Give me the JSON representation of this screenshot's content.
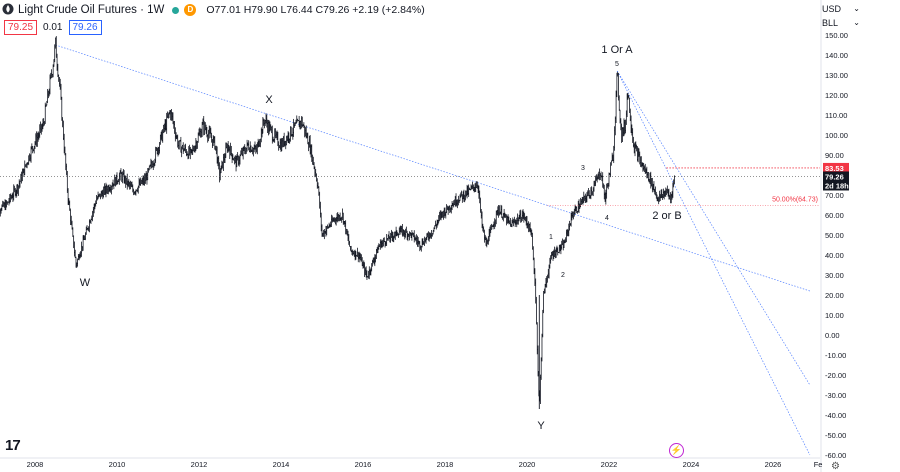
{
  "header": {
    "title": "Light Crude Oil Futures · 1W",
    "ohlc": "O77.01 H79.90 L76.44 C79.26 +2.19 (+2.84%)",
    "bid": "79.25",
    "spread": "0.01",
    "ask": "79.26"
  },
  "controls": {
    "currency": "USD",
    "unit": "BLL"
  },
  "price_labels": {
    "target": "83.53",
    "current": "79.26",
    "countdown": "2d 18h"
  },
  "chart_data": {
    "type": "line",
    "title": "Light Crude Oil Futures",
    "interval": "1W",
    "ylim": [
      -60,
      150
    ],
    "ylabel": "",
    "y_ticks": [
      "150.00",
      "140.00",
      "130.00",
      "120.00",
      "110.00",
      "100.00",
      "90.00",
      "80.00",
      "70.00",
      "60.00",
      "50.00",
      "40.00",
      "30.00",
      "20.00",
      "10.00",
      "0.00",
      "-10.00",
      "-20.00",
      "-30.00",
      "-40.00",
      "-50.00",
      "-60.00"
    ],
    "x_ticks": [
      "2008",
      "2010",
      "2012",
      "2014",
      "2016",
      "2018",
      "2020",
      "2022",
      "2024",
      "2026",
      "Fe"
    ],
    "series": [
      {
        "values": [
          [
            2007.0,
            62
          ],
          [
            2007.3,
            65
          ],
          [
            2007.6,
            75
          ],
          [
            2007.9,
            92
          ],
          [
            2008.2,
            105
          ],
          [
            2008.4,
            130
          ],
          [
            2008.5,
            145
          ],
          [
            2008.6,
            125
          ],
          [
            2008.8,
            70
          ],
          [
            2009.0,
            35
          ],
          [
            2009.2,
            48
          ],
          [
            2009.5,
            68
          ],
          [
            2009.8,
            74
          ],
          [
            2010.1,
            80
          ],
          [
            2010.4,
            72
          ],
          [
            2010.7,
            78
          ],
          [
            2010.9,
            88
          ],
          [
            2011.1,
            100
          ],
          [
            2011.3,
            112
          ],
          [
            2011.5,
            95
          ],
          [
            2011.8,
            90
          ],
          [
            2012.1,
            105
          ],
          [
            2012.4,
            95
          ],
          [
            2012.5,
            80
          ],
          [
            2012.7,
            95
          ],
          [
            2012.9,
            86
          ],
          [
            2013.2,
            95
          ],
          [
            2013.4,
            92
          ],
          [
            2013.6,
            108
          ],
          [
            2013.8,
            100
          ],
          [
            2014.0,
            95
          ],
          [
            2014.3,
            103
          ],
          [
            2014.5,
            107
          ],
          [
            2014.7,
            95
          ],
          [
            2014.9,
            75
          ],
          [
            2015.0,
            50
          ],
          [
            2015.3,
            58
          ],
          [
            2015.5,
            60
          ],
          [
            2015.7,
            42
          ],
          [
            2015.9,
            40
          ],
          [
            2016.1,
            29
          ],
          [
            2016.4,
            45
          ],
          [
            2016.6,
            48
          ],
          [
            2016.9,
            52
          ],
          [
            2017.2,
            50
          ],
          [
            2017.4,
            45
          ],
          [
            2017.7,
            52
          ],
          [
            2017.9,
            60
          ],
          [
            2018.3,
            68
          ],
          [
            2018.6,
            72
          ],
          [
            2018.8,
            76
          ],
          [
            2018.9,
            55
          ],
          [
            2019.0,
            45
          ],
          [
            2019.3,
            63
          ],
          [
            2019.6,
            55
          ],
          [
            2019.9,
            60
          ],
          [
            2020.1,
            52
          ],
          [
            2020.2,
            25
          ],
          [
            2020.3,
            -37
          ],
          [
            2020.4,
            20
          ],
          [
            2020.6,
            40
          ],
          [
            2020.9,
            45
          ],
          [
            2021.1,
            60
          ],
          [
            2021.4,
            68
          ],
          [
            2021.6,
            73
          ],
          [
            2021.8,
            82
          ],
          [
            2021.9,
            68
          ],
          [
            2022.1,
            90
          ],
          [
            2022.2,
            130
          ],
          [
            2022.3,
            100
          ],
          [
            2022.4,
            105
          ],
          [
            2022.45,
            123
          ],
          [
            2022.6,
            95
          ],
          [
            2022.8,
            85
          ],
          [
            2023.0,
            78
          ],
          [
            2023.2,
            68
          ],
          [
            2023.4,
            72
          ],
          [
            2023.5,
            68
          ],
          [
            2023.6,
            79.26
          ]
        ]
      }
    ],
    "wave_labels": [
      "W",
      "X",
      "Y",
      "1 Or A",
      "2 or B",
      "1",
      "2",
      "3",
      "4",
      "5"
    ],
    "fib_label": "50.00%(64.73)",
    "levels": {
      "fib_50": 64.73,
      "target": 83.53,
      "current": 79.26
    },
    "trendlines": [
      {
        "from": [
          2008.5,
          145
        ],
        "to": [
          2026.9,
          22
        ]
      },
      {
        "from": [
          2022.2,
          132
        ],
        "to": [
          2026.9,
          -25
        ]
      },
      {
        "from": [
          2022.2,
          132
        ],
        "to": [
          2026.9,
          -60
        ]
      }
    ],
    "grid": false,
    "colors": {
      "bars": "#131722",
      "trend": "#2962ff",
      "target": "#f23645",
      "fib": "#f23645"
    }
  }
}
